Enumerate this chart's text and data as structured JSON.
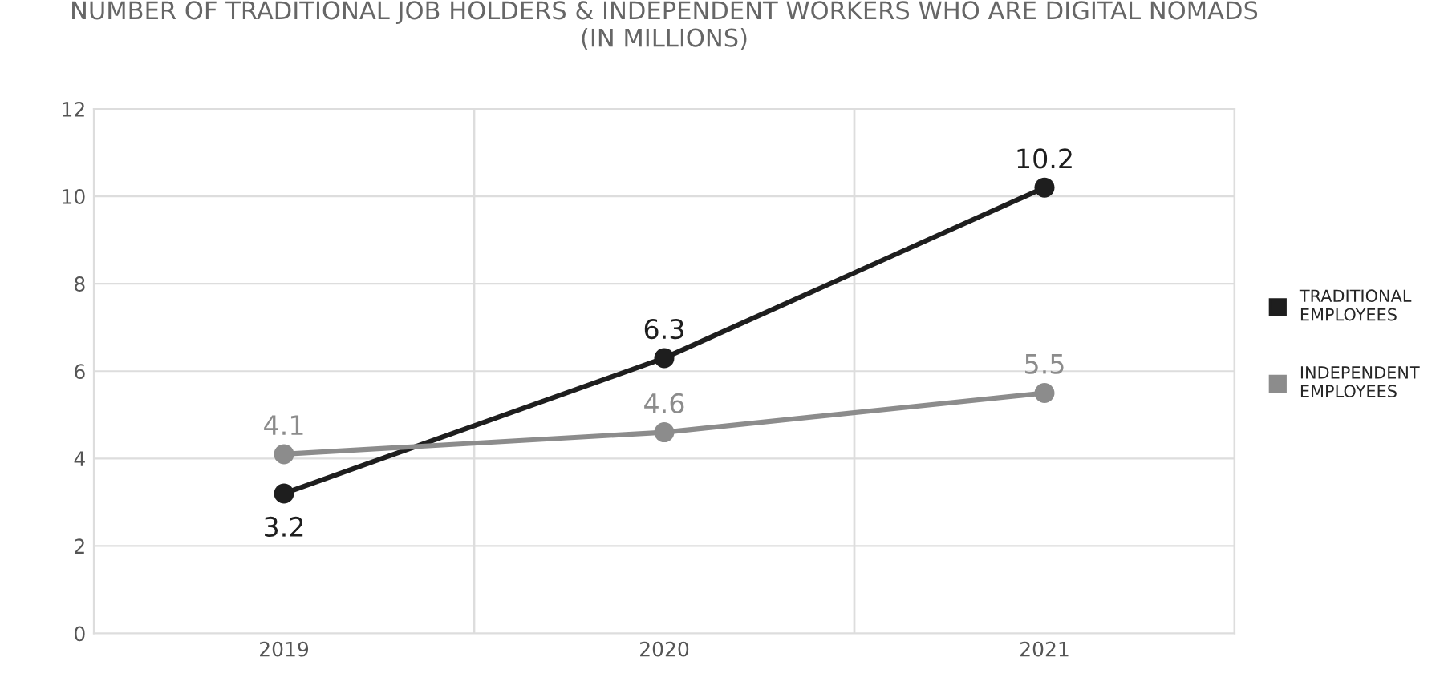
{
  "chart_data": {
    "type": "line",
    "title": "NUMBER OF TRADITIONAL JOB HOLDERS & INDEPENDENT WORKERS WHO ARE DIGITAL NOMADS\n(IN MILLIONS)",
    "categories": [
      "2019",
      "2020",
      "2021"
    ],
    "series": [
      {
        "name": "TRADITIONAL\nEMPLOYEES",
        "color": "#1e1e1e",
        "values": [
          3.2,
          6.3,
          10.2
        ]
      },
      {
        "name": "INDEPENDENT\nEMPLOYEES",
        "color": "#8c8c8c",
        "values": [
          4.1,
          4.6,
          5.5
        ]
      }
    ],
    "ylim": [
      0,
      12
    ],
    "yticks": [
      0,
      2,
      4,
      6,
      8,
      10,
      12
    ],
    "grid": true,
    "legend": "right",
    "marker": "circle",
    "line_style": "solid",
    "data_labels": true
  }
}
